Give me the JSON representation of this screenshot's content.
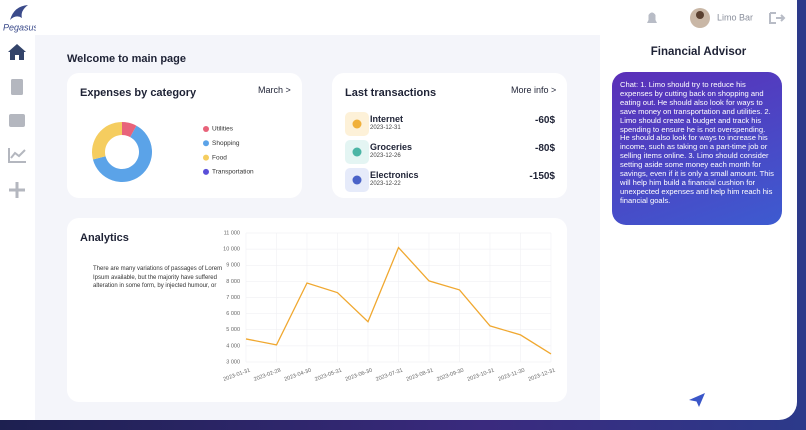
{
  "header": {
    "logo": "Pegasus",
    "user": "Limo Bar"
  },
  "main": {
    "title": "Welcome to main page"
  },
  "expenses": {
    "link": "March >"
  },
  "transactions": {
    "title": "Last transactions",
    "link": "More info >",
    "items": [
      {
        "name": "Internet",
        "date": "2023-12-31",
        "amount": "-60$"
      },
      {
        "name": "Groceries",
        "date": "2023-12-26",
        "amount": "-80$"
      },
      {
        "name": "Electronics",
        "date": "2023-12-22",
        "amount": "-150$"
      }
    ]
  },
  "analytics": {
    "text": "There are many variations of passages of Lorem Ipsum available, but the majority have suffered alteration in some form, by injected humour, or"
  },
  "advisor": {
    "title": "Financial Advisor",
    "chat": "Chat: 1. Limo should try to reduce his expenses by cutting back on shopping and eating out. He should also look for ways to save money on transportation and utilities. 2. Limo should create a budget and track his spending to ensure he is not overspending. He should also look for ways to increase his income, such as taking on a part-time job or selling items online. 3. Limo should consider setting aside some money each month for savings, even if it is only a small amount. This will help him build a financial cushion for unexpected expenses and help him reach his financial goals."
  },
  "chart_data": [
    {
      "type": "pie",
      "donut": true,
      "title": "Expenses by category",
      "categories": [
        "Utilities",
        "Shopping",
        "Food",
        "Transportation"
      ],
      "values": [
        8,
        63,
        29,
        0
      ],
      "colors": [
        "#e8637a",
        "#5ba3e8",
        "#f5cd5f",
        "#5a4fd8"
      ]
    },
    {
      "type": "line",
      "title": "Analytics",
      "categories": [
        "2023-01-31",
        "2023-02-28",
        "2023-04-30",
        "2023-05-31",
        "2023-06-30",
        "2023-07-31",
        "2023-08-31",
        "2023-09-30",
        "2023-10-31",
        "2023-11-30",
        "2023-12-31"
      ],
      "values": [
        4430,
        4060,
        7900,
        7300,
        5500,
        10100,
        8030,
        7470,
        5240,
        4680,
        3500
      ],
      "color": "#f0a830",
      "ylim": [
        3000,
        11000
      ],
      "yticks": [
        {
          "value": 3000,
          "label": "3 000"
        },
        {
          "value": 4000,
          "label": "4 000"
        },
        {
          "value": 5000,
          "label": "5 000"
        },
        {
          "value": 6000,
          "label": "6 000"
        },
        {
          "value": 7000,
          "label": "7 000"
        },
        {
          "value": 8000,
          "label": "8 000"
        },
        {
          "value": 9000,
          "label": "9 000"
        },
        {
          "value": 10000,
          "label": "10 000"
        },
        {
          "value": 11000,
          "label": "11 000"
        }
      ],
      "grid": true
    }
  ]
}
